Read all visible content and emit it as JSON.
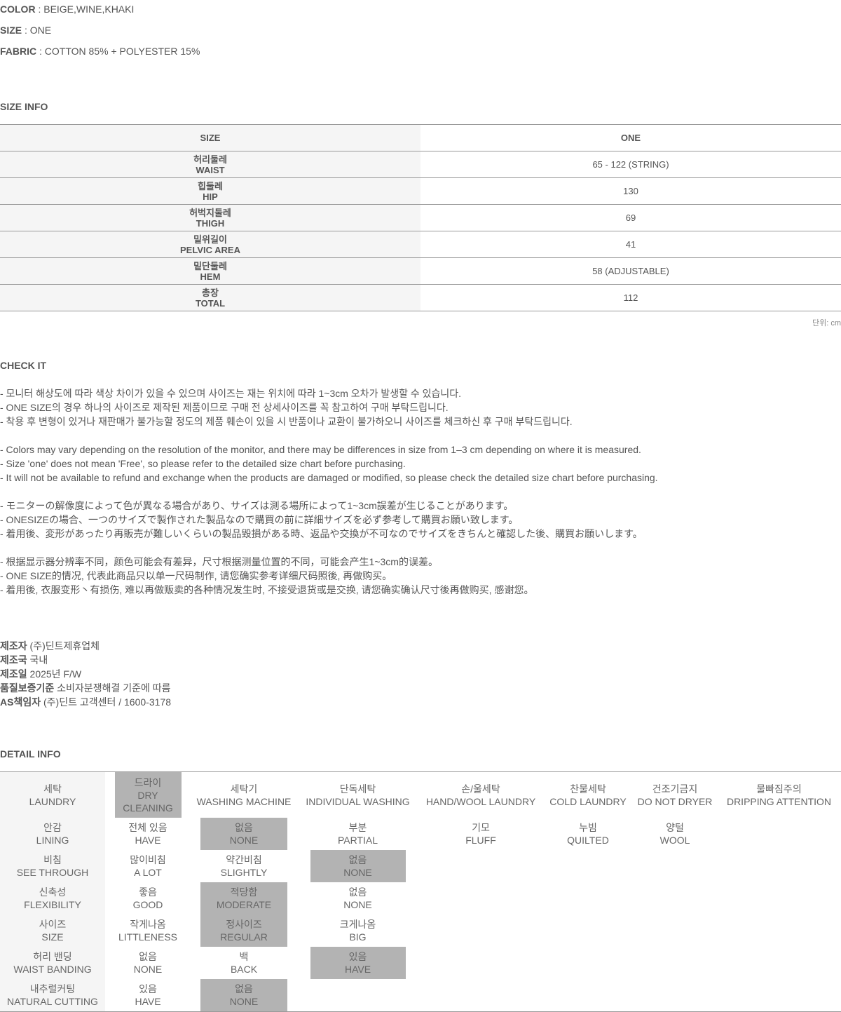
{
  "specs": [
    {
      "k": "COLOR",
      "v": " : BEIGE,WINE,KHAKI"
    },
    {
      "k": "SIZE",
      "v": " : ONE"
    },
    {
      "k": "FABRIC",
      "v": " : COTTON 85% + POLYESTER 15%"
    }
  ],
  "size_info": {
    "title": "SIZE INFO",
    "header": [
      "SIZE",
      "ONE"
    ],
    "rows": [
      {
        "ko": "허리둘레",
        "en": "WAIST",
        "v": "65 - 122 (STRING)"
      },
      {
        "ko": "힙둘레",
        "en": "HIP",
        "v": "130"
      },
      {
        "ko": "허벅지둘레",
        "en": "THIGH",
        "v": "69"
      },
      {
        "ko": "밑위길이",
        "en": "PELVIC AREA",
        "v": "41"
      },
      {
        "ko": "밑단둘레",
        "en": "HEM",
        "v": "58 (ADJUSTABLE)"
      },
      {
        "ko": "총장",
        "en": "TOTAL",
        "v": "112"
      }
    ],
    "unit": "단위: cm"
  },
  "check": {
    "title": "CHECK IT",
    "lines": [
      "- 모니터 해상도에 따라 색상 차이가 있을 수 있으며 사이즈는 재는 위치에 따라 1~3cm 오차가 발생할 수 있습니다.",
      "- ONE SIZE의 경우 하나의 사이즈로 제작된 제품이므로 구매 전 상세사이즈를 꼭 참고하여 구매 부탁드립니다.",
      "- 착용 후 변형이 있거나 재판매가 불가능할 정도의 제품 훼손이 있을 시 반품이나 교환이 불가하오니 사이즈를 체크하신 후 구매 부탁드립니다.",
      "",
      "- Colors may vary depending on the resolution of the monitor, and there may be differences in size from 1–3 cm depending on where it is measured.",
      "- Size 'one' does not mean 'Free', so please refer to the detailed size chart before purchasing.",
      "- It will not be available to refund and exchange when the products are damaged or modified, so please check the detailed size chart before purchasing.",
      "",
      "- モニターの解像度によって色が異なる場合があり、サイズは測る場所によって1~3cm誤差が生じることがあります。",
      "- ONESIZEの場合、一つのサイズで製作された製品なので購買の前に詳細サイズを必ず参考して購買お願い致します。",
      "- 着用後、変形があったり再販売が難しいくらいの製品毀損がある時、返品や交換が不可なのでサイズをきちんと確認した後、購買お願いします。",
      "",
      "- 根据显示器分辨率不同，颜色可能会有差异，尺寸根据测量位置的不同，可能会产生1~3cm的误差。",
      "- ONE SIZE的情况, 代表此商品只以单一尺码制作, 请您确实参考详细尺码照後, 再做购买。",
      "- 着用後, 衣服变形丶有损伤, 难以再做贩卖的各种情况发生时, 不接受退货或是交换, 请您确实确认尺寸後再做购买, 感谢您。"
    ]
  },
  "manufacturer": [
    {
      "k": "제조자",
      "v": " (주)딘트제휴업체"
    },
    {
      "k": "제조국",
      "v": " 국내"
    },
    {
      "k": "제조일",
      "v": " 2025년 F/W"
    },
    {
      "k": "품질보증기준",
      "v": " 소비자분쟁해결 기준에 따름"
    },
    {
      "k": "AS책임자",
      "v": " (주)딘트 고객센터 / 1600-3178"
    }
  ],
  "detail": {
    "title": "DETAIL INFO",
    "rows": [
      {
        "cells": [
          [
            "세탁",
            "LAUNDRY"
          ],
          [
            "드라이",
            "DRY",
            "CLEANING"
          ],
          [
            "세탁기",
            "WASHING MACHINE"
          ],
          [
            "단독세탁",
            "INDIVIDUAL WASHING"
          ],
          [
            "손/울세탁",
            "HAND/WOOL LAUNDRY"
          ],
          [
            "찬물세탁",
            "COLD LAUNDRY"
          ],
          [
            "건조기금지",
            "DO NOT DRYER"
          ],
          [
            "물빠짐주의",
            "DRIPPING ATTENTION"
          ]
        ],
        "selected": [
          1
        ]
      },
      {
        "cells": [
          [
            "안감",
            "LINING"
          ],
          [
            "전체 있음",
            "HAVE"
          ],
          [
            "없음",
            "NONE"
          ],
          [
            "부분",
            "PARTIAL"
          ],
          [
            "기모",
            "FLUFF"
          ],
          [
            "누빔",
            "QUILTED"
          ],
          [
            "양털",
            "WOOL"
          ]
        ],
        "selected": [
          2
        ]
      },
      {
        "cells": [
          [
            "비침",
            "SEE THROUGH"
          ],
          [
            "많이비침",
            "A LOT"
          ],
          [
            "약간비침",
            "SLIGHTLY"
          ],
          [
            "없음",
            "NONE"
          ]
        ],
        "selected": [
          3
        ]
      },
      {
        "cells": [
          [
            "신축성",
            "FLEXIBILITY"
          ],
          [
            "좋음",
            "GOOD"
          ],
          [
            "적당함",
            "MODERATE"
          ],
          [
            "없음",
            "NONE"
          ]
        ],
        "selected": [
          2
        ]
      },
      {
        "cells": [
          [
            "사이즈",
            "SIZE"
          ],
          [
            "작게나옴",
            "LITTLENESS"
          ],
          [
            "정사이즈",
            "REGULAR"
          ],
          [
            "크게나옴",
            "BIG"
          ]
        ],
        "selected": [
          2
        ]
      },
      {
        "cells": [
          [
            "허리 밴딩",
            "WAIST BANDING"
          ],
          [
            "없음",
            "NONE"
          ],
          [
            "백",
            "BACK"
          ],
          [
            "있음",
            "HAVE"
          ]
        ],
        "selected": [
          3
        ]
      },
      {
        "cells": [
          [
            "내추럴커팅",
            "NATURAL CUTTING"
          ],
          [
            "있음",
            "HAVE"
          ],
          [
            "없음",
            "NONE"
          ]
        ],
        "selected": [
          2
        ]
      }
    ]
  },
  "colors": {
    "text": "#555555",
    "label_bg": "#f5f5f5",
    "selected_bg": "#b3b3b3",
    "rule": "#999999"
  }
}
